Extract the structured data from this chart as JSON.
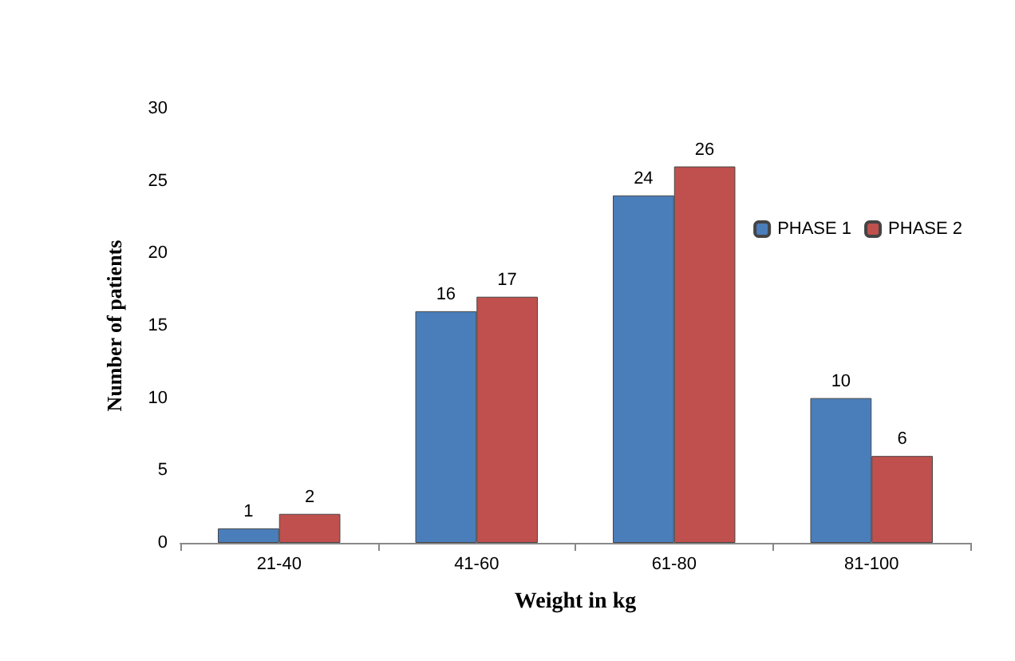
{
  "chart_data": {
    "type": "bar",
    "categories": [
      "21-40",
      "41-60",
      "61-80",
      "81-100"
    ],
    "series": [
      {
        "name": "PHASE 1",
        "color": "#4a7ebb",
        "values": [
          1,
          16,
          24,
          10
        ]
      },
      {
        "name": "PHASE 2",
        "color": "#c0504d",
        "values": [
          2,
          17,
          26,
          6
        ]
      }
    ],
    "xlabel": "Weight in kg",
    "ylabel": "Number of patients",
    "ylim": [
      0,
      30
    ],
    "yticks": [
      0,
      5,
      10,
      15,
      20,
      25,
      30
    ],
    "data_labels": true,
    "legend": "top right",
    "grid": false
  }
}
